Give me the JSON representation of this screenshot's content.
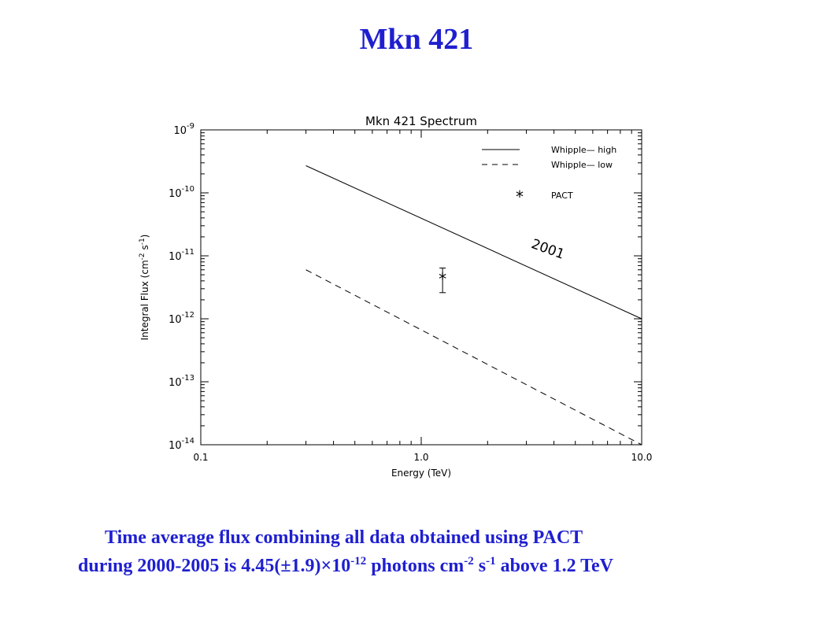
{
  "slide": {
    "title": "Mkn 421",
    "caption_line1": "Time average flux combining all data obtained using PACT",
    "caption_line2": {
      "prefix": "during 2000-2005 is 4.45(±1.9)×10",
      "exp1": "-12",
      "mid": " photons cm",
      "exp2": "-2",
      "s": " s",
      "exp3": "-1",
      "suffix": " above 1.2 TeV"
    }
  },
  "chart_data": {
    "type": "line",
    "title": "Mkn 421 Spectrum",
    "xlabel": "Energy (TeV)",
    "ylabel": "Integral Flux (cm^-2 s^-1)",
    "xscale": "log",
    "yscale": "log",
    "xlim": [
      0.1,
      10.0
    ],
    "ylim": [
      1e-14,
      1e-09
    ],
    "x_ticks": [
      0.1,
      1.0,
      10.0
    ],
    "x_tick_labels": [
      "0.1",
      "1.0",
      "10.0"
    ],
    "y_ticks": [
      1e-14,
      1e-13,
      1e-12,
      1e-11,
      1e-10,
      1e-09
    ],
    "y_tick_labels": [
      {
        "base": "10",
        "exp": "-14"
      },
      {
        "base": "10",
        "exp": "-13"
      },
      {
        "base": "10",
        "exp": "-12"
      },
      {
        "base": "10",
        "exp": "-11"
      },
      {
        "base": "10",
        "exp": "-10"
      },
      {
        "base": "10",
        "exp": "-9"
      }
    ],
    "ylabel_parts": {
      "main": "Integral Flux (cm",
      "e1": "-2",
      "mid": " s",
      "e2": "-1",
      "end": ")"
    },
    "series": [
      {
        "name": "Whipple— high",
        "style": "solid",
        "x": [
          0.3,
          10.0
        ],
        "y": [
          2.7e-10,
          1e-12
        ]
      },
      {
        "name": "Whipple— low",
        "style": "dashed",
        "x": [
          0.3,
          10.0
        ],
        "y": [
          6e-12,
          1e-14
        ]
      },
      {
        "name": "PACT",
        "style": "marker",
        "x": [
          1.25
        ],
        "y": [
          4.5e-12
        ],
        "yerr_low": [
          2.6e-12
        ],
        "yerr_high": [
          6.4e-12
        ]
      }
    ],
    "annotations": [
      {
        "text": "2001",
        "x": 3.7,
        "y": 1.1e-11,
        "rotation": 20
      }
    ],
    "legend_position": "top-right",
    "grid": false
  }
}
